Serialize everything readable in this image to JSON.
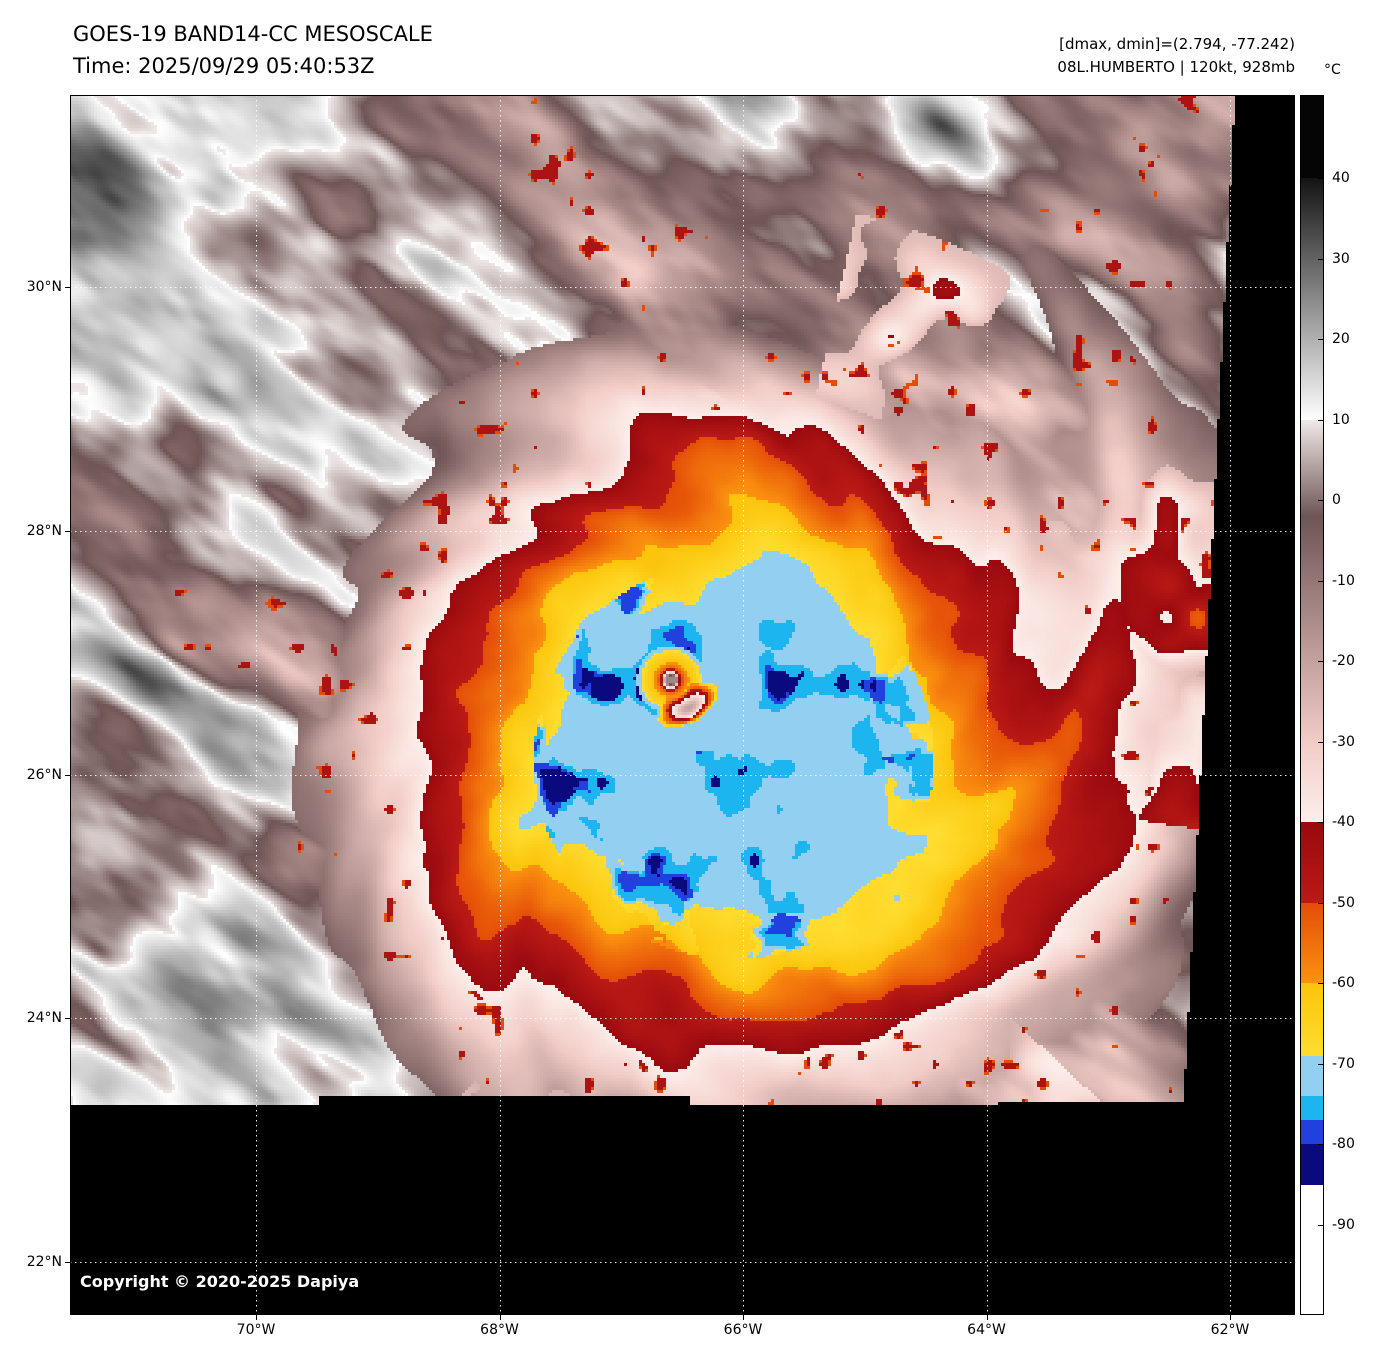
{
  "header": {
    "title": "GOES-19 BAND14-CC MESOSCALE",
    "time": "Time: 2025/09/29 05:40:53Z",
    "dmax_dmin": "[dmax, dmin]=(2.794, -77.242)",
    "storm_info": "08L.HUMBERTO | 120kt, 928mb"
  },
  "colorbar": {
    "unit": "°C",
    "tick_values": [
      40,
      30,
      20,
      10,
      0,
      -10,
      -20,
      -30,
      -40,
      -50,
      -60,
      -70,
      -80,
      -90
    ],
    "segments": [
      {
        "from": 60,
        "to": 40,
        "c1": "#050505",
        "c2": "#050505"
      },
      {
        "from": 40,
        "to": 10,
        "c1": "#141414",
        "c2": "#ffffff"
      },
      {
        "from": 10,
        "to": -2,
        "c1": "#efe9e7",
        "c2": "#6f5555"
      },
      {
        "from": -2,
        "to": -30,
        "c1": "#6f5555",
        "c2": "#f2ccc7"
      },
      {
        "from": -30,
        "to": -40,
        "c1": "#f2ccc7",
        "c2": "#fdeeea"
      },
      {
        "from": -40,
        "to": -50,
        "c1": "#99090f",
        "c2": "#bb1a15"
      },
      {
        "from": -50,
        "to": -60,
        "c1": "#e44d08",
        "c2": "#fb920f"
      },
      {
        "from": -60,
        "to": -69,
        "c1": "#fbc40b",
        "c2": "#ffdd30"
      },
      {
        "from": -69,
        "to": -74,
        "c1": "#92cff1",
        "c2": "#92cff1"
      },
      {
        "from": -74,
        "to": -77,
        "c1": "#1db5ef",
        "c2": "#1db5ef"
      },
      {
        "from": -77,
        "to": -80,
        "c1": "#2140dd",
        "c2": "#2140dd"
      },
      {
        "from": -80,
        "to": -85,
        "c1": "#0a0a7e",
        "c2": "#0a0a7e"
      },
      {
        "from": -85,
        "to": -102,
        "c1": "#ffffff",
        "c2": "#ffffff"
      }
    ]
  },
  "map": {
    "lat_gridlines": [
      {
        "label": "30°N",
        "deg": 30
      },
      {
        "label": "28°N",
        "deg": 28
      },
      {
        "label": "26°N",
        "deg": 26
      },
      {
        "label": "24°N",
        "deg": 24
      },
      {
        "label": "22°N",
        "deg": 22
      }
    ],
    "lon_gridlines": [
      {
        "label": "70°W",
        "deg": 70
      },
      {
        "label": "68°W",
        "deg": 68
      },
      {
        "label": "66°W",
        "deg": 66
      },
      {
        "label": "64°W",
        "deg": 64
      },
      {
        "label": "62°W",
        "deg": 62
      }
    ],
    "copyright": "Copyright © 2020-2025 Dapiya"
  }
}
